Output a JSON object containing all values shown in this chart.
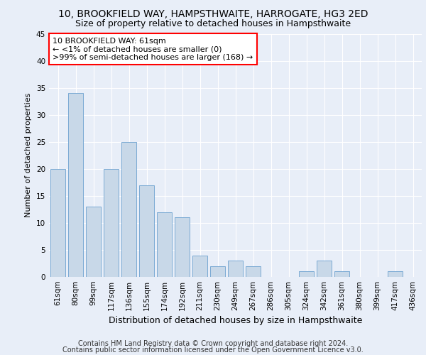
{
  "title1": "10, BROOKFIELD WAY, HAMPSTHWAITE, HARROGATE, HG3 2ED",
  "title2": "Size of property relative to detached houses in Hampsthwaite",
  "xlabel": "Distribution of detached houses by size in Hampsthwaite",
  "ylabel": "Number of detached properties",
  "categories": [
    "61sqm",
    "80sqm",
    "99sqm",
    "117sqm",
    "136sqm",
    "155sqm",
    "174sqm",
    "192sqm",
    "211sqm",
    "230sqm",
    "249sqm",
    "267sqm",
    "286sqm",
    "305sqm",
    "324sqm",
    "342sqm",
    "361sqm",
    "380sqm",
    "399sqm",
    "417sqm",
    "436sqm"
  ],
  "values": [
    20,
    34,
    13,
    20,
    25,
    17,
    12,
    11,
    4,
    2,
    3,
    2,
    0,
    0,
    1,
    3,
    1,
    0,
    0,
    1,
    0
  ],
  "bar_color": "#c8d8e8",
  "bar_edge_color": "#7baad4",
  "annotation_line1": "10 BROOKFIELD WAY: 61sqm",
  "annotation_line2": "← <1% of detached houses are smaller (0)",
  "annotation_line3": ">99% of semi-detached houses are larger (168) →",
  "annotation_box_color": "white",
  "annotation_box_edge_color": "red",
  "ylim": [
    0,
    45
  ],
  "yticks": [
    0,
    5,
    10,
    15,
    20,
    25,
    30,
    35,
    40,
    45
  ],
  "bg_color": "#e8eef8",
  "fig_color": "#e8eef8",
  "grid_color": "white",
  "footer1": "Contains HM Land Registry data © Crown copyright and database right 2024.",
  "footer2": "Contains public sector information licensed under the Open Government Licence v3.0.",
  "title_fontsize": 10,
  "subtitle_fontsize": 9,
  "annotation_fontsize": 8,
  "ylabel_fontsize": 8,
  "xlabel_fontsize": 9,
  "footer_fontsize": 7,
  "tick_fontsize": 7.5
}
